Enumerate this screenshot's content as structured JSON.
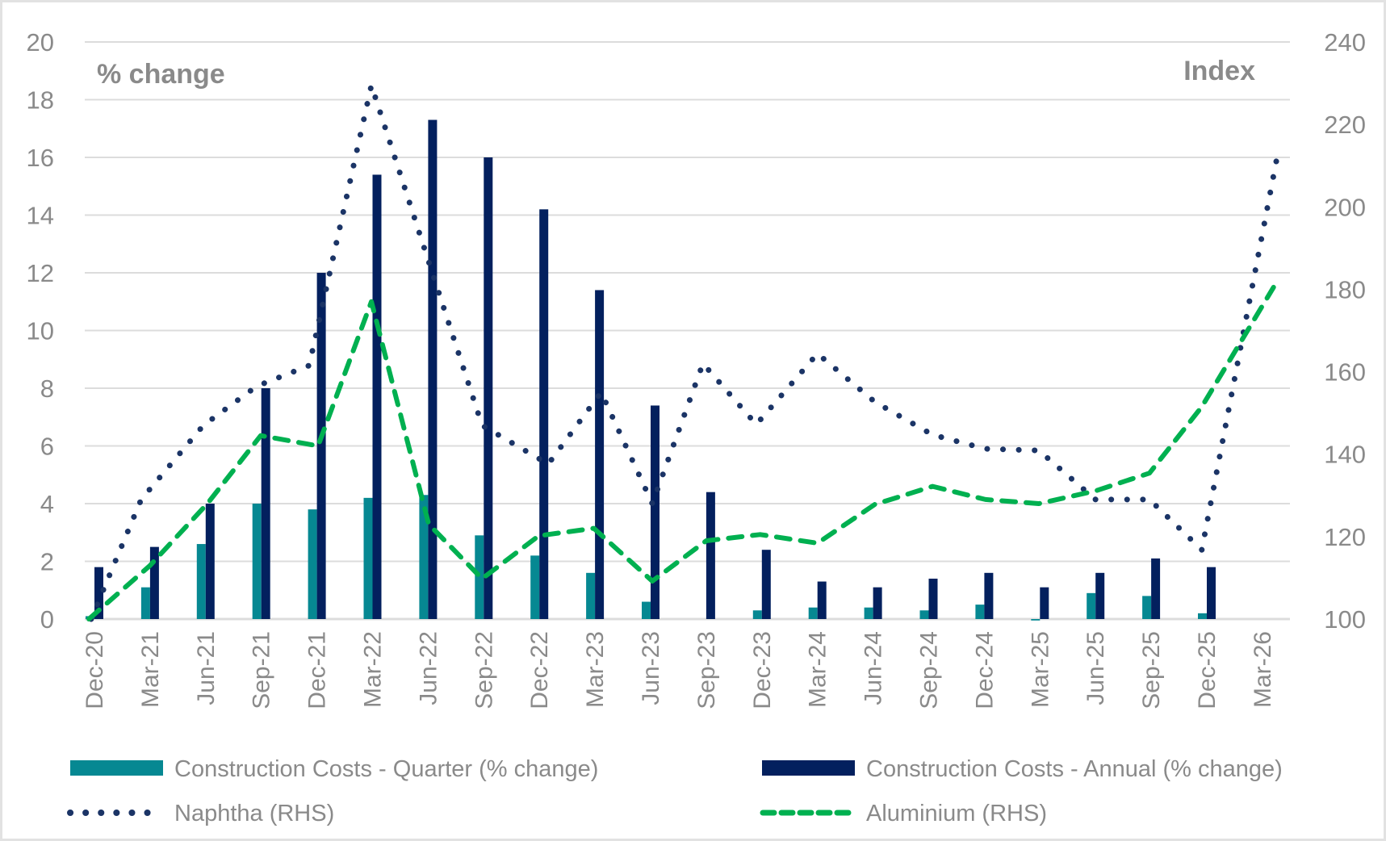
{
  "chart_data": {
    "type": "bar",
    "title": "",
    "categories": [
      "Dec-20",
      "Mar-21",
      "Jun-21",
      "Sep-21",
      "Dec-21",
      "Mar-22",
      "Jun-22",
      "Sep-22",
      "Dec-22",
      "Mar-23",
      "Jun-23",
      "Sep-23",
      "Dec-23",
      "Mar-24",
      "Jun-24",
      "Sep-24",
      "Dec-24",
      "Mar-25",
      "Jun-25",
      "Sep-25",
      "Dec-25",
      "Mar-26"
    ],
    "left_axis": {
      "label": "% change",
      "ylim": [
        0,
        20
      ],
      "ticks": [
        "0",
        "2",
        "4",
        "6",
        "8",
        "10",
        "12",
        "14",
        "16",
        "18",
        "20"
      ]
    },
    "right_axis": {
      "label": "Index",
      "ylim": [
        100,
        240
      ],
      "ticks": [
        "100",
        "120",
        "140",
        "160",
        "180",
        "200",
        "220",
        "240"
      ]
    },
    "grid": true,
    "legend_position": "bottom",
    "series": [
      {
        "name": "Construction Costs - Quarter (% change)",
        "type": "bar",
        "axis": "left",
        "color": "#068892",
        "values": [
          0.1,
          1.1,
          2.6,
          4.0,
          3.8,
          4.2,
          4.3,
          2.9,
          2.2,
          1.6,
          0.6,
          0.0,
          0.3,
          0.4,
          0.4,
          0.3,
          0.5,
          -0.05,
          0.9,
          0.8,
          0.2,
          null
        ]
      },
      {
        "name": "Construction Costs - Annual (% change)",
        "type": "bar",
        "axis": "left",
        "color": "#03205e",
        "values": [
          1.8,
          2.5,
          4.0,
          8.0,
          12.0,
          15.4,
          17.3,
          16.0,
          14.2,
          11.4,
          7.4,
          4.4,
          2.4,
          1.3,
          1.1,
          1.4,
          1.6,
          1.1,
          1.6,
          2.1,
          1.8,
          null
        ]
      },
      {
        "name": "Naphtha (RHS)",
        "type": "line",
        "style": "dotted",
        "axis": "right",
        "color": "#1b3466",
        "x_index": [
          -0.06,
          0.84,
          1.96,
          2.92,
          3.86,
          4.98,
          5.93,
          6.97,
          8.16,
          9.11,
          10.03,
          10.94,
          11.9,
          13.0,
          14.03,
          15.07,
          16.02,
          16.98,
          18.0,
          18.97,
          19.91,
          21.27
        ],
        "values": [
          100,
          129,
          147,
          156.5,
          161.5,
          229.5,
          190,
          147,
          137.6,
          155,
          128,
          162,
          147.2,
          164.4,
          152.7,
          144.7,
          141.3,
          140.9,
          129,
          129,
          116.8,
          212.5
        ]
      },
      {
        "name": "Aluminium (RHS)",
        "type": "line",
        "style": "dashed",
        "axis": "right",
        "color": "#00b050",
        "x_index": [
          -0.1,
          1.0,
          2.03,
          2.99,
          4.02,
          4.98,
          6.01,
          6.97,
          7.99,
          8.98,
          10.03,
          11.0,
          11.97,
          13.0,
          14.03,
          15.07,
          16.02,
          16.98,
          18.0,
          18.97,
          19.91,
          21.2
        ],
        "values": [
          100,
          113,
          128,
          144.5,
          142,
          177,
          123,
          109.8,
          120.2,
          122,
          109.2,
          119,
          120.5,
          118.4,
          127.8,
          132.2,
          129,
          128,
          131.1,
          135.4,
          151.5,
          180.5
        ]
      }
    ]
  }
}
